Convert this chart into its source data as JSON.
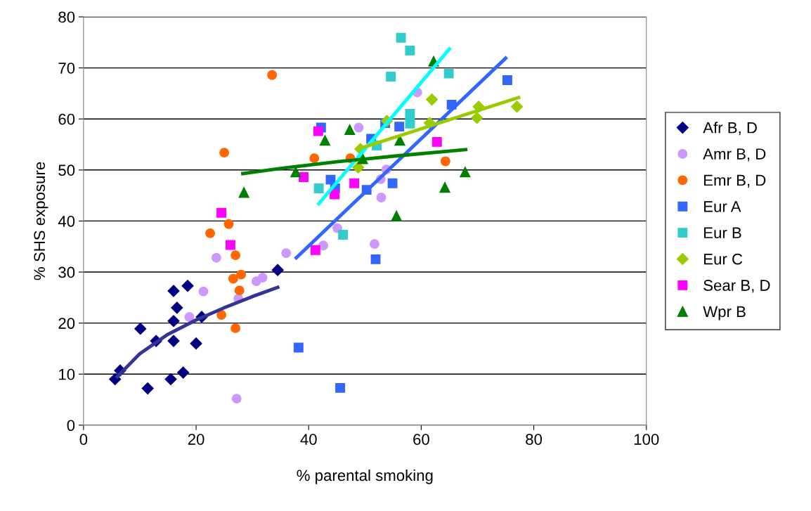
{
  "chart_data": {
    "type": "scatter",
    "xlabel": "% parental smoking",
    "ylabel": "% SHS exposure",
    "xlim": [
      0,
      100
    ],
    "ylim": [
      0,
      80
    ],
    "xticks": [
      0,
      20,
      40,
      60,
      80,
      100
    ],
    "yticks": [
      0,
      10,
      20,
      30,
      40,
      50,
      60,
      70,
      80
    ],
    "grid": "y",
    "legend": "right",
    "series": [
      {
        "name": "Afr B, D",
        "color": "#000080",
        "marker": "diamond",
        "x": [
          5.6,
          6.5,
          10.1,
          12.9,
          11.4,
          16,
          16.6,
          16,
          16,
          15.5,
          17.7,
          18.5,
          20,
          21,
          34.5
        ],
        "values": [
          9.0,
          10.7,
          18.9,
          16.5,
          7.2,
          26.3,
          23,
          20.4,
          16.5,
          9,
          10.3,
          27.3,
          16,
          21.2,
          30.4
        ]
      },
      {
        "name": "Amr B, D",
        "color": "#cc99ff",
        "marker": "circle",
        "x": [
          18.8,
          21.3,
          23.6,
          27.2,
          27.5,
          30.7,
          31.8,
          36,
          42.6,
          45.1,
          48.9,
          51.7,
          52.8,
          52.9,
          53.8,
          59.3
        ],
        "values": [
          21.2,
          26.2,
          32.8,
          5.2,
          24.8,
          28.2,
          28.9,
          33.7,
          35.2,
          38.6,
          58.3,
          35.5,
          48.2,
          44.6,
          50.1,
          65.2
        ]
      },
      {
        "name": "Emr B, D",
        "color": "#ff6600",
        "marker": "circle",
        "x": [
          33.5,
          25,
          22.5,
          25.8,
          27,
          28,
          26.6,
          27.7,
          27,
          24.5,
          41,
          47.4,
          64.3
        ],
        "values": [
          68.6,
          53.4,
          37.6,
          39.4,
          33.3,
          29.5,
          28.7,
          26.4,
          19,
          21.6,
          52.3,
          52.3,
          51.7
        ]
      },
      {
        "name": "Eur A",
        "color": "#3366ff",
        "marker": "square",
        "x": [
          42.2,
          53.6,
          56.1,
          51.1,
          65.4,
          75.3,
          43.9,
          44.7,
          50.3,
          54.9,
          51.9,
          38.2,
          45.6
        ],
        "values": [
          58.3,
          59.2,
          58.5,
          56.1,
          62.8,
          67.6,
          48.1,
          46.4,
          46.1,
          47.4,
          32.5,
          15.2,
          7.3
        ]
      },
      {
        "name": "Eur B",
        "color": "#33cccc",
        "marker": "square",
        "x": [
          56.4,
          58,
          54.6,
          64.9,
          58,
          58,
          52.1,
          41.8,
          46.1
        ],
        "values": [
          75.9,
          73.4,
          68.3,
          68.9,
          61,
          59.1,
          54.8,
          46.4,
          37.3
        ]
      },
      {
        "name": "Eur C",
        "color": "#99cc00",
        "marker": "diamond",
        "x": [
          61.9,
          70.2,
          77,
          69.9,
          61.5,
          53.9,
          49.2,
          48.8
        ],
        "values": [
          63.8,
          62.4,
          62.4,
          60.2,
          59.2,
          59.6,
          54.1,
          50.5
        ]
      },
      {
        "name": "Sear B, D",
        "color": "#ff00ff",
        "marker": "square",
        "x": [
          41.7,
          62.8,
          39.1,
          48.1,
          44.6,
          24.5,
          26.1,
          41.2
        ],
        "values": [
          57.6,
          55.5,
          48.6,
          47.4,
          45.2,
          41.6,
          35.3,
          34.3
        ]
      },
      {
        "name": "Wpr B",
        "color": "#008000",
        "marker": "triangle",
        "x": [
          28.5,
          42.9,
          47.3,
          62.2,
          56.2,
          49.6,
          37.7,
          67.8,
          64.2,
          55.6
        ],
        "values": [
          45.6,
          55.8,
          57.9,
          71.3,
          55.8,
          52.2,
          49.6,
          49.6,
          46.6,
          41.0
        ]
      },
      {
        "type": "line",
        "color": "#333399",
        "x": [
          6,
          10,
          15,
          20,
          25,
          30,
          34.5
        ],
        "values": [
          9.5,
          14.0,
          17.8,
          20.6,
          23,
          25.2,
          27
        ]
      },
      {
        "type": "line",
        "color": "#3366ff",
        "x": [
          37.8,
          75
        ],
        "values": [
          32.8,
          71.9
        ]
      },
      {
        "type": "line",
        "color": "#00ffff",
        "x": [
          41.8,
          65
        ],
        "values": [
          43.4,
          73.7
        ]
      },
      {
        "type": "line",
        "color": "#99cc00",
        "x": [
          48.8,
          77.3
        ],
        "values": [
          54.1,
          64.2
        ]
      },
      {
        "type": "line",
        "color": "#008000",
        "x": [
          28.3,
          35,
          45,
          55,
          67.9
        ],
        "values": [
          49.3,
          50.3,
          51.6,
          52.7,
          54
        ]
      }
    ]
  }
}
